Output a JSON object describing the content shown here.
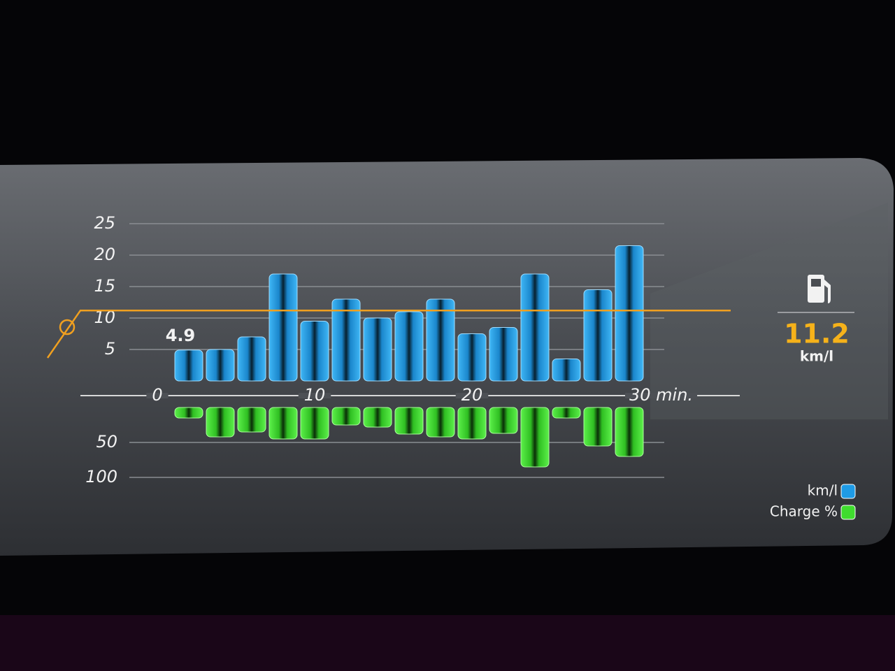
{
  "chart_data": {
    "type": "bar",
    "x": [
      2,
      4,
      6,
      8,
      10,
      12,
      14,
      16,
      18,
      20,
      22,
      24,
      26,
      28,
      30
    ],
    "xlim": [
      0,
      32
    ],
    "xticks": [
      0,
      10,
      20,
      {
        "value": 30,
        "label": "30 min."
      }
    ],
    "ylim": [
      0,
      25
    ],
    "yticks": [
      5,
      10,
      15,
      20,
      25
    ],
    "y2lim": [
      0,
      100
    ],
    "y2ticks": [
      50,
      100
    ],
    "grid": true,
    "series": [
      {
        "name": "km/l",
        "color": "#1e9be6",
        "values": [
          4.9,
          5,
          7,
          17,
          9.5,
          13,
          10,
          11,
          13,
          7.5,
          8.5,
          17,
          3.5,
          14.5,
          21.5
        ],
        "value_labels": [
          "4.9",
          null,
          null,
          null,
          null,
          null,
          null,
          null,
          null,
          null,
          null,
          null,
          null,
          null,
          null
        ]
      },
      {
        "name": "Charge %",
        "color": "#3fdc2e",
        "axis": "y2",
        "values": [
          15,
          42,
          35,
          45,
          45,
          25,
          28,
          38,
          42,
          45,
          37,
          85,
          15,
          55,
          70
        ]
      }
    ],
    "average": {
      "value": 11.2,
      "unit": "km/l"
    },
    "legend": "bottom-right"
  }
}
